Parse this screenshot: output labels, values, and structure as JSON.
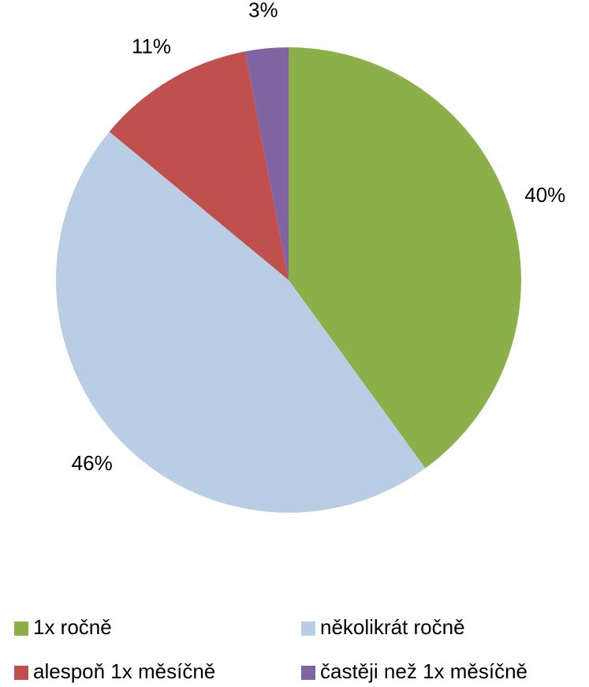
{
  "chart_data": {
    "type": "pie",
    "categories": [
      "1x ročně",
      "několikrát ročně",
      "alespoň 1x měsíčně",
      "častěji než 1x měsíčně"
    ],
    "values": [
      40,
      46,
      11,
      3
    ],
    "value_labels": [
      "40%",
      "46%",
      "11%",
      "3%"
    ],
    "colors": [
      "#8bb04a",
      "#b9cde5",
      "#c0504d",
      "#8064a2"
    ],
    "legend": "bottom"
  }
}
